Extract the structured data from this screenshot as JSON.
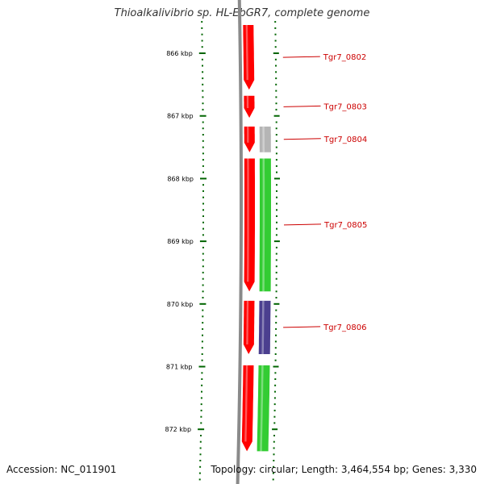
{
  "title": "Thioalkalivibrio sp. HL-EbGR7, complete genome",
  "accession": "Accession: NC_011901",
  "summary": "Topology: circular; Length: 3,464,554 bp; Genes: 3,330",
  "colors": {
    "ruler": "#006400",
    "backbone": "#8a8a8a",
    "forward_gene": "#ff0000",
    "label": "#cc0000",
    "grey_feature": "#b5b5b5",
    "green_feature": "#33cc33",
    "purple_feature": "#4b3f8f"
  },
  "ruler": {
    "ticks": [
      {
        "kbp": 866,
        "label": "866 kbp"
      },
      {
        "kbp": 867,
        "label": "867 kbp"
      },
      {
        "kbp": 868,
        "label": "868 kbp"
      },
      {
        "kbp": 869,
        "label": "869 kbp"
      },
      {
        "kbp": 870,
        "label": "870 kbp"
      },
      {
        "kbp": 871,
        "label": "871 kbp"
      },
      {
        "kbp": 872,
        "label": "872 kbp"
      }
    ]
  },
  "genes": [
    {
      "name": "Tgr7_0802",
      "color": "#ff0000",
      "start_kbp": 865.55,
      "end_kbp": 866.58
    },
    {
      "name": "Tgr7_0803",
      "color": "#ff0000",
      "start_kbp": 866.68,
      "end_kbp": 867.03
    },
    {
      "name": "Tgr7_0804",
      "color": "#ff0000",
      "start_kbp": 867.17,
      "end_kbp": 867.58
    },
    {
      "name": "Tgr7_0805",
      "color": "#ff0000",
      "start_kbp": 867.68,
      "end_kbp": 869.8
    },
    {
      "name": "Tgr7_0806",
      "color": "#ff0000",
      "start_kbp": 869.95,
      "end_kbp": 870.8
    },
    {
      "name": "",
      "color": "#ff0000",
      "start_kbp": 870.98,
      "end_kbp": 872.35
    }
  ],
  "features": [
    {
      "color": "#b5b5b5",
      "start_kbp": 867.17,
      "end_kbp": 867.58
    },
    {
      "color": "#33cc33",
      "start_kbp": 867.68,
      "end_kbp": 869.8
    },
    {
      "color": "#4b3f8f",
      "start_kbp": 869.95,
      "end_kbp": 870.8
    },
    {
      "color": "#33cc33",
      "start_kbp": 870.98,
      "end_kbp": 872.35
    }
  ]
}
